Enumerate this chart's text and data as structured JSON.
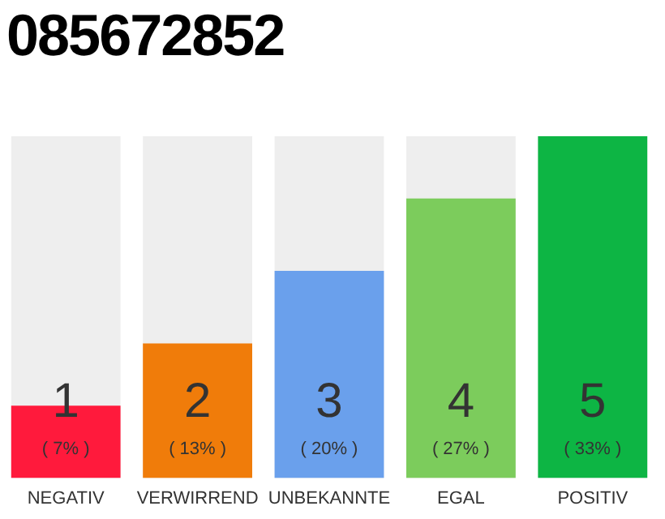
{
  "chart_data": {
    "type": "bar",
    "title": "085672852",
    "categories": [
      "NEGATIV",
      "VERWIRREND",
      "UNBEKANNTE",
      "EGAL",
      "POSITIV"
    ],
    "values": [
      7,
      13,
      20,
      27,
      33
    ],
    "colors": [
      "#ff1a3c",
      "#f07c0a",
      "#6aa0ec",
      "#7ccc5c",
      "#0db544"
    ],
    "value_labels": [
      "( 7% )",
      "( 13% )",
      "( 20% )",
      "( 27% )",
      "( 33% )"
    ],
    "annotations": [
      "1",
      "2",
      "3",
      "4",
      "5"
    ],
    "grid": false,
    "legend": false
  }
}
